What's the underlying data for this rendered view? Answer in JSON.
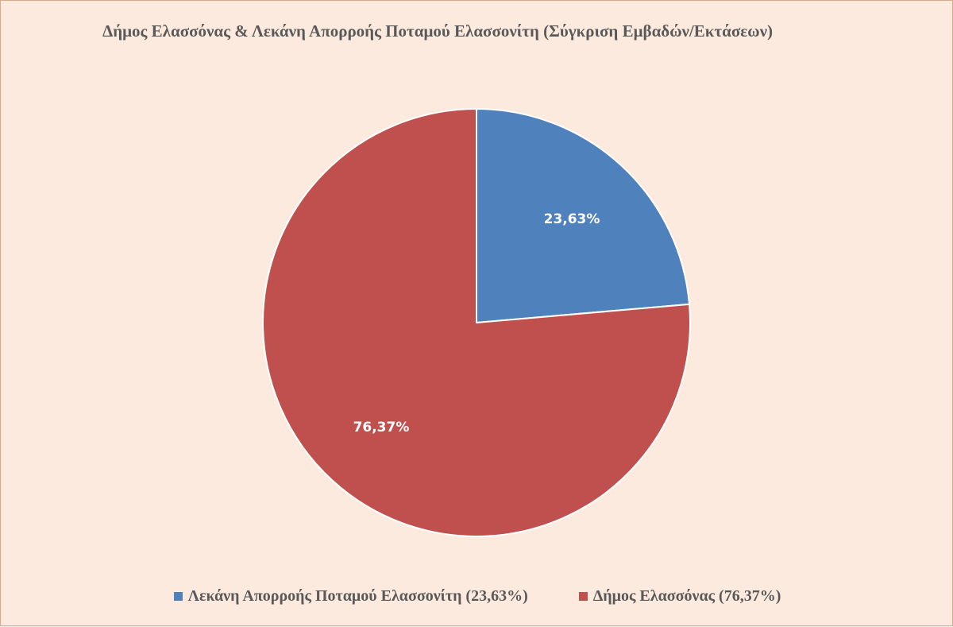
{
  "chart_data": {
    "type": "pie",
    "title": "Δήμος Ελασσόνας & Λεκάνη Απορροής Ποταμού Ελασσονίτη (Σύγκριση Εμβαδών/Εκτάσεων)",
    "categories": [
      "Λεκάνη Απορροής Ποταμού Ελασσονίτη",
      "Δήμος Ελασσόνας"
    ],
    "values": [
      23.63,
      76.37
    ],
    "data_labels": [
      "23,63%",
      "76,37%"
    ],
    "legend_labels": [
      "Λεκάνη Απορροής Ποταμού Ελασσονίτη (23,63%)",
      "Δήμος Ελασσόνας (76,37%)"
    ],
    "colors": [
      "#4f81bd",
      "#c0504d"
    ],
    "legend_position": "bottom",
    "start_angle": "12 o'clock, clockwise"
  }
}
